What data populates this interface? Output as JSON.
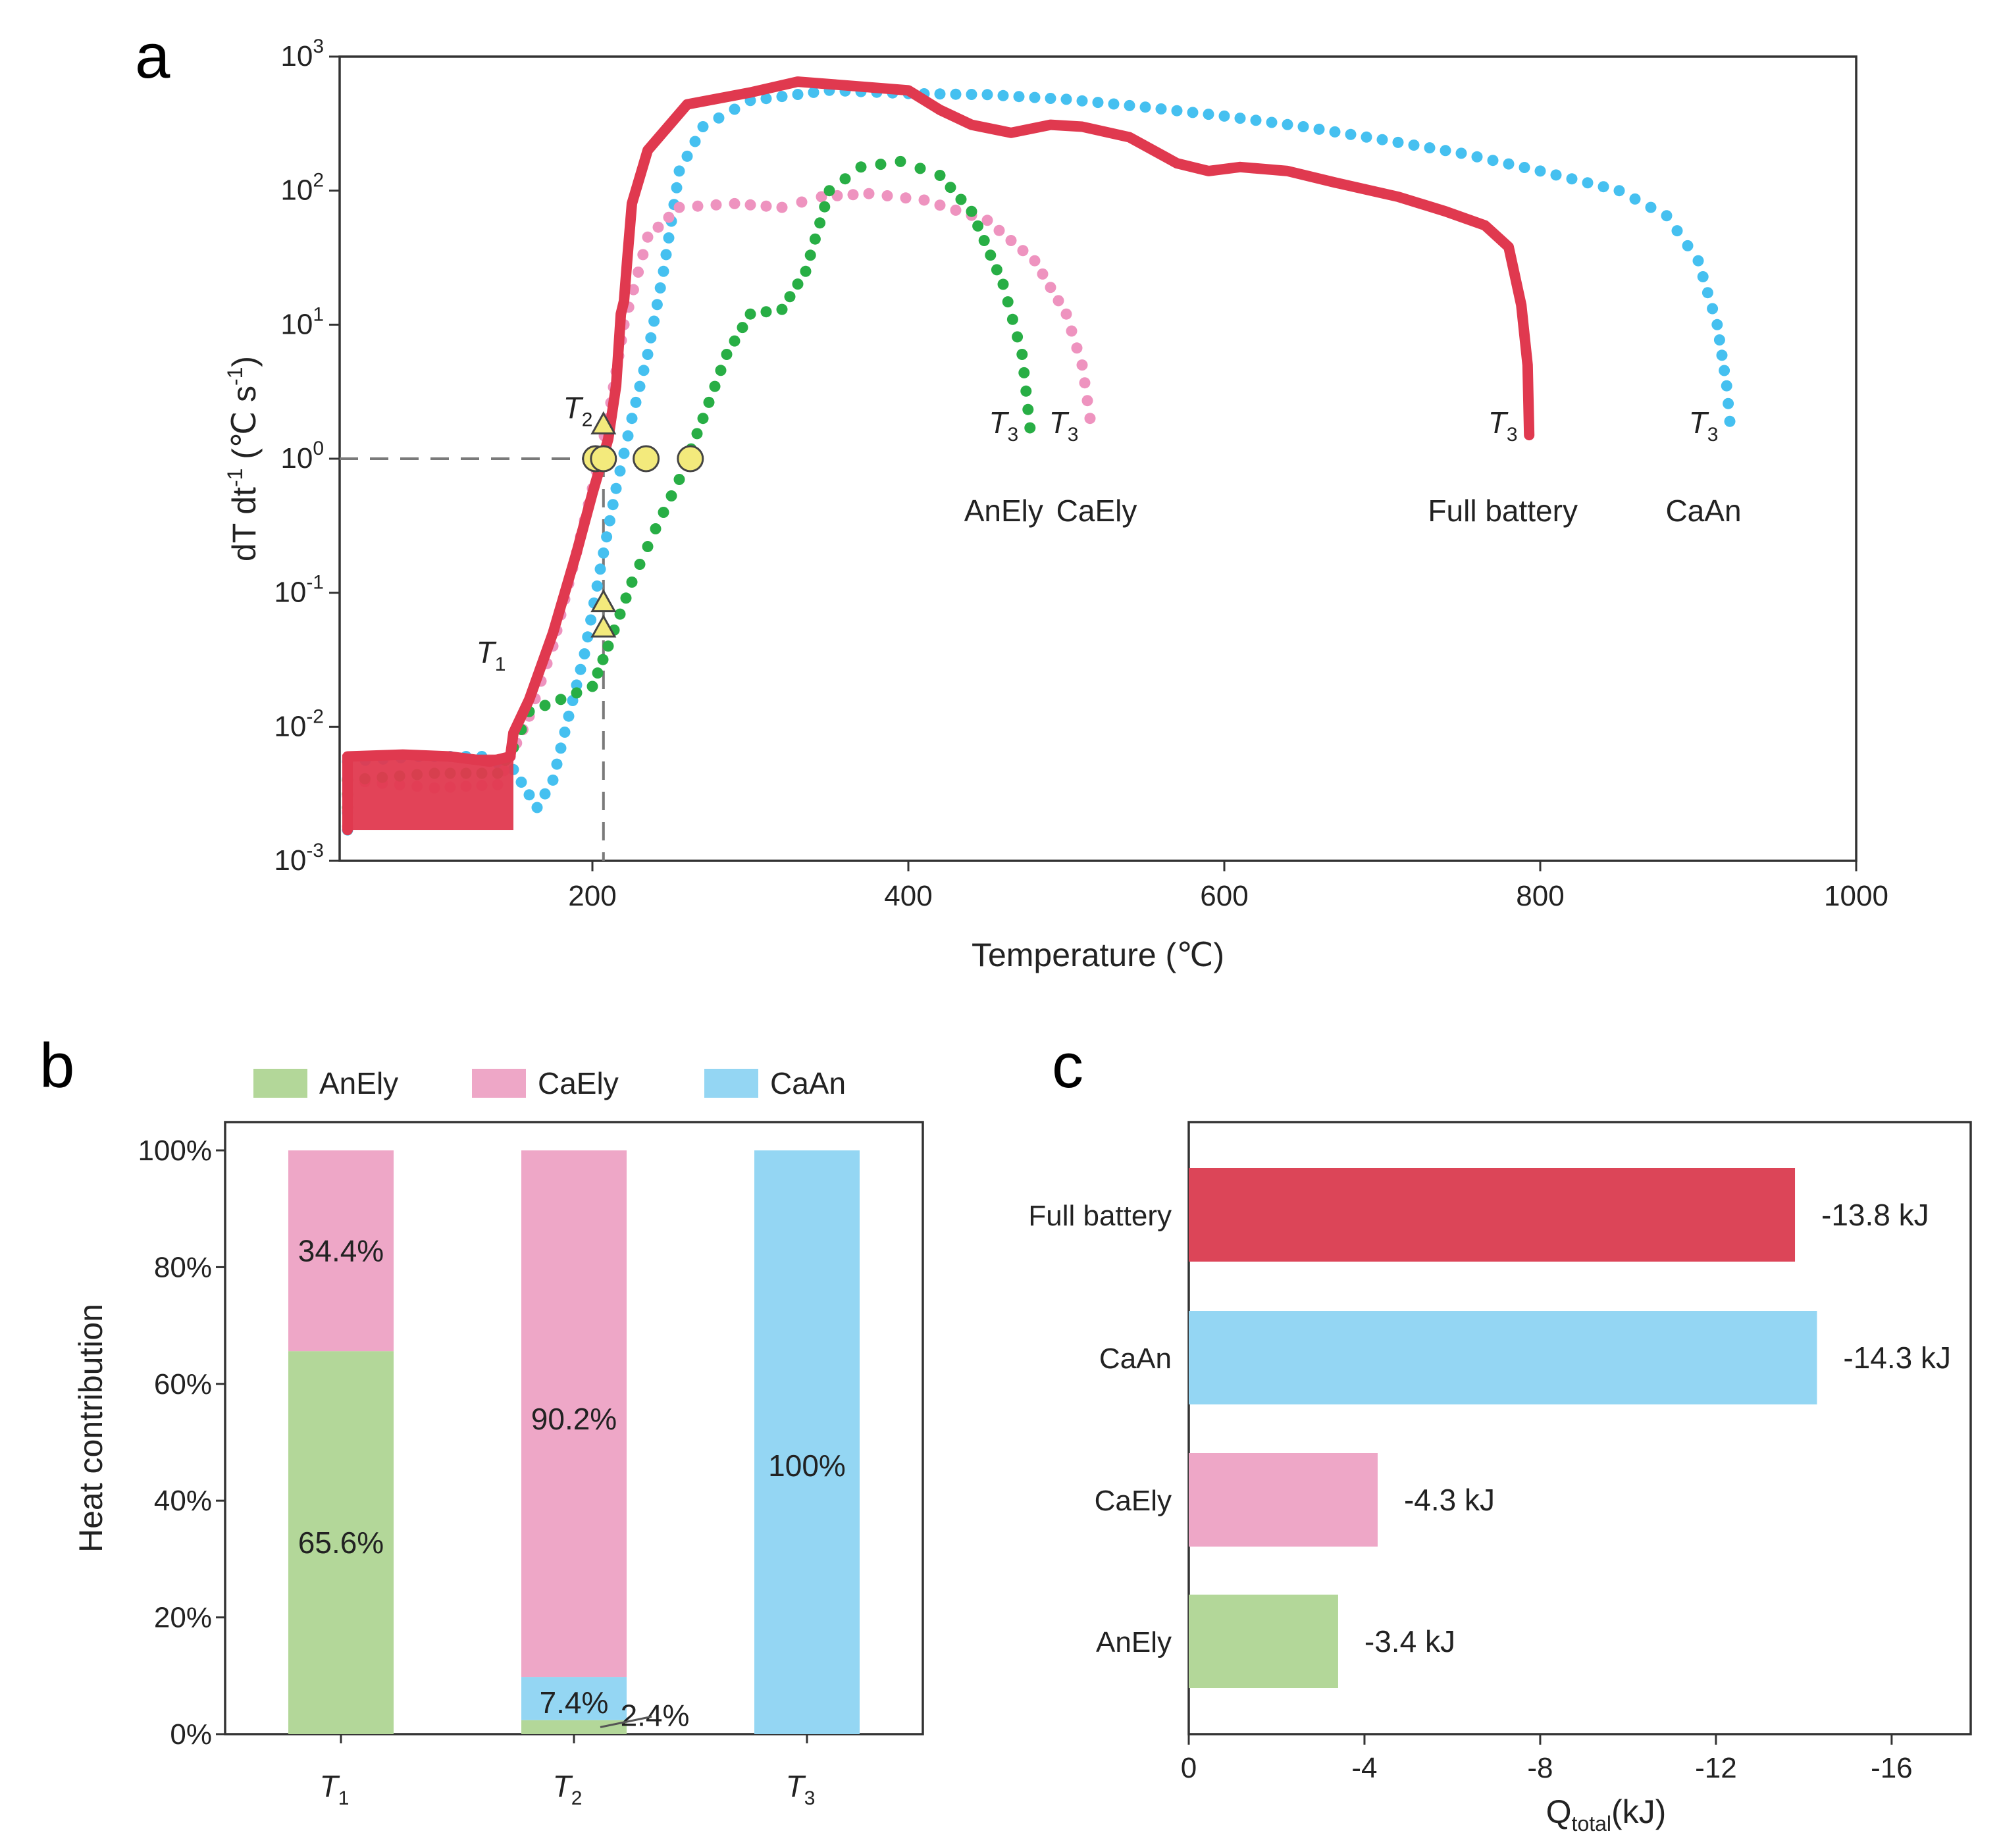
{
  "chart_data": [
    {
      "id": "a",
      "type": "scatter",
      "panel_label": "a",
      "xlabel": "Temperature (℃)",
      "ylabel": "dT dt-1 (℃ s-1)",
      "x_scale": "linear",
      "y_scale": "log",
      "xlim": [
        40,
        1000
      ],
      "ylim": [
        0.001,
        1000
      ],
      "x_ticks": [
        200,
        400,
        600,
        800,
        1000
      ],
      "y_tick_exponents": [
        -3,
        -2,
        -1,
        0,
        1,
        2,
        3
      ],
      "colors": {
        "full": "#e0394f",
        "caan": "#45c0f0",
        "caely": "#ee93bf",
        "anely": "#28ae45",
        "marker_fill": "#f3ea7c",
        "marker_stroke": "#444444",
        "ref_line": "#7a7a7a"
      },
      "reference_line": {
        "y": 1,
        "x": 207
      },
      "series": [
        {
          "name": "Full battery",
          "key": "full",
          "style": "line",
          "label": "Full battery",
          "t3_label": "T",
          "t3_sub": "3",
          "points": [
            [
              45,
              0.0017
            ],
            [
              45,
              0.006
            ],
            [
              80,
              0.0062
            ],
            [
              110,
              0.006
            ],
            [
              135,
              0.0055
            ],
            [
              148,
              0.006
            ],
            [
              150,
              0.009
            ],
            [
              160,
              0.016
            ],
            [
              175,
              0.05
            ],
            [
              190,
              0.2
            ],
            [
              200,
              0.55
            ],
            [
              210,
              1.4
            ],
            [
              215,
              3.5
            ],
            [
              218,
              12
            ],
            [
              220,
              15
            ],
            [
              222,
              30
            ],
            [
              225,
              80
            ],
            [
              235,
              200
            ],
            [
              260,
              440
            ],
            [
              300,
              540
            ],
            [
              330,
              650
            ],
            [
              360,
              610
            ],
            [
              400,
              560
            ],
            [
              420,
              400
            ],
            [
              440,
              310
            ],
            [
              465,
              270
            ],
            [
              490,
              310
            ],
            [
              510,
              300
            ],
            [
              540,
              250
            ],
            [
              570,
              160
            ],
            [
              590,
              140
            ],
            [
              610,
              150
            ],
            [
              640,
              140
            ],
            [
              670,
              115
            ],
            [
              710,
              90
            ],
            [
              740,
              70
            ],
            [
              765,
              55
            ],
            [
              780,
              38
            ],
            [
              788,
              14
            ],
            [
              792,
              5
            ],
            [
              793,
              1.5
            ]
          ]
        },
        {
          "name": "CaAn",
          "key": "caan",
          "style": "dots",
          "label": "CaAn",
          "t3_label": "T",
          "t3_sub": "3",
          "points": [
            [
              45,
              0.0017
            ],
            [
              45,
              0.0055
            ],
            [
              90,
              0.006
            ],
            [
              130,
              0.006
            ],
            [
              150,
              0.0048
            ],
            [
              165,
              0.0025
            ],
            [
              175,
              0.004
            ],
            [
              185,
              0.012
            ],
            [
              195,
              0.035
            ],
            [
              205,
              0.15
            ],
            [
              215,
              0.6
            ],
            [
              225,
              2
            ],
            [
              235,
              6
            ],
            [
              245,
              25
            ],
            [
              255,
              140
            ],
            [
              270,
              300
            ],
            [
              300,
              470
            ],
            [
              350,
              560
            ],
            [
              400,
              530
            ],
            [
              450,
              520
            ],
            [
              500,
              480
            ],
            [
              550,
              420
            ],
            [
              600,
              360
            ],
            [
              650,
              300
            ],
            [
              700,
              240
            ],
            [
              750,
              190
            ],
            [
              800,
              140
            ],
            [
              850,
              100
            ],
            [
              880,
              65
            ],
            [
              900,
              30
            ],
            [
              912,
              10
            ],
            [
              918,
              3.5
            ],
            [
              920,
              1.9
            ]
          ]
        },
        {
          "name": "CaEly",
          "key": "caely",
          "style": "dots",
          "label": "CaEly",
          "t3_label": "T",
          "t3_sub": "3",
          "points": [
            [
              45,
              0.0018
            ],
            [
              45,
              0.004
            ],
            [
              100,
              0.0035
            ],
            [
              140,
              0.0037
            ],
            [
              148,
              0.006
            ],
            [
              160,
              0.012
            ],
            [
              175,
              0.04
            ],
            [
              190,
              0.2
            ],
            [
              200,
              0.6
            ],
            [
              210,
              2
            ],
            [
              220,
              10
            ],
            [
              235,
              45
            ],
            [
              255,
              75
            ],
            [
              290,
              80
            ],
            [
              320,
              75
            ],
            [
              345,
              90
            ],
            [
              375,
              95
            ],
            [
              410,
              85
            ],
            [
              450,
              60
            ],
            [
              480,
              30
            ],
            [
              500,
              12
            ],
            [
              510,
              5
            ],
            [
              515,
              2
            ]
          ]
        },
        {
          "name": "AnEly",
          "key": "anely",
          "style": "dots",
          "label": "AnEly",
          "t3_label": "T",
          "t3_sub": "3",
          "points": [
            [
              45,
              0.0025
            ],
            [
              45,
              0.004
            ],
            [
              100,
              0.0045
            ],
            [
              140,
              0.0045
            ],
            [
              150,
              0.007
            ],
            [
              160,
              0.013
            ],
            [
              180,
              0.016
            ],
            [
              200,
              0.02
            ],
            [
              210,
              0.04
            ],
            [
              225,
              0.12
            ],
            [
              240,
              0.3
            ],
            [
              255,
              0.7
            ],
            [
              270,
              2
            ],
            [
              285,
              6
            ],
            [
              300,
              12
            ],
            [
              320,
              13
            ],
            [
              335,
              25
            ],
            [
              350,
              100
            ],
            [
              370,
              150
            ],
            [
              395,
              165
            ],
            [
              420,
              130
            ],
            [
              440,
              70
            ],
            [
              460,
              20
            ],
            [
              472,
              6
            ],
            [
              477,
              1.7
            ]
          ]
        }
      ],
      "markers": [
        {
          "shape": "circle",
          "x": 202,
          "y": 1
        },
        {
          "shape": "circle",
          "x": 207,
          "y": 1
        },
        {
          "shape": "circle",
          "x": 234,
          "y": 1
        },
        {
          "shape": "circle",
          "x": 262,
          "y": 1
        },
        {
          "shape": "triangle",
          "x": 207,
          "y": 1.8
        },
        {
          "shape": "triangle",
          "x": 207,
          "y": 0.085
        },
        {
          "shape": "triangle",
          "x": 207,
          "y": 0.055
        }
      ],
      "annotations": [
        {
          "text": "T",
          "sub": "1",
          "x": 140,
          "y": 0.03
        },
        {
          "text": "T",
          "sub": "2",
          "x": 195,
          "y": 2.0
        }
      ],
      "endpoint_labels": [
        {
          "key": "anely",
          "x": 477,
          "t3_y": 1.7
        },
        {
          "key": "caely",
          "x": 515,
          "t3_y": 1.7
        },
        {
          "key": "full",
          "x": 793,
          "t3_y": 1.7
        },
        {
          "key": "caan",
          "x": 920,
          "t3_y": 1.7
        }
      ]
    },
    {
      "id": "b",
      "type": "bar",
      "stacked": true,
      "panel_label": "b",
      "ylabel": "Heat contribution",
      "ylim": [
        0,
        100
      ],
      "y_ticks": [
        "0%",
        "20%",
        "40%",
        "60%",
        "80%",
        "100%"
      ],
      "categories": [
        "T1",
        "T2",
        "T3"
      ],
      "category_labels": [
        {
          "main": "T",
          "sub": "1"
        },
        {
          "main": "T",
          "sub": "2"
        },
        {
          "main": "T",
          "sub": "3"
        }
      ],
      "legend": [
        "AnEly",
        "CaEly",
        "CaAn"
      ],
      "colors": {
        "AnEly": "#b3d799",
        "CaEly": "#eea7c7",
        "CaAn": "#94d6f3"
      },
      "series": [
        {
          "name": "AnEly",
          "values": [
            65.6,
            2.4,
            0
          ],
          "labels": [
            "65.6%",
            "2.4%",
            ""
          ]
        },
        {
          "name": "CaAn",
          "values": [
            0,
            7.4,
            100
          ],
          "labels": [
            "",
            "7.4%",
            "100%"
          ]
        },
        {
          "name": "CaEly",
          "values": [
            34.4,
            90.2,
            0
          ],
          "labels": [
            "34.4%",
            "90.2%",
            ""
          ]
        }
      ]
    },
    {
      "id": "c",
      "type": "bar",
      "orientation": "horizontal",
      "panel_label": "c",
      "xlabel": "Q",
      "xlabel_sub": "total",
      "xlabel_unit": "(kJ)",
      "xlim": [
        0,
        -17.8
      ],
      "x_ticks": [
        "0",
        "-4",
        "-8",
        "-12",
        "-16"
      ],
      "x_tick_values": [
        0,
        -4,
        -8,
        -12,
        -16
      ],
      "categories": [
        "Full battery",
        "CaAn",
        "CaEly",
        "AnEly"
      ],
      "values": [
        -13.8,
        -14.3,
        -4.3,
        -3.4
      ],
      "value_labels": [
        "-13.8 kJ",
        "-14.3 kJ",
        "-4.3 kJ",
        "-3.4 kJ"
      ],
      "colors": [
        "#dc4558",
        "#94d6f3",
        "#eea7c7",
        "#b3d799"
      ]
    }
  ]
}
